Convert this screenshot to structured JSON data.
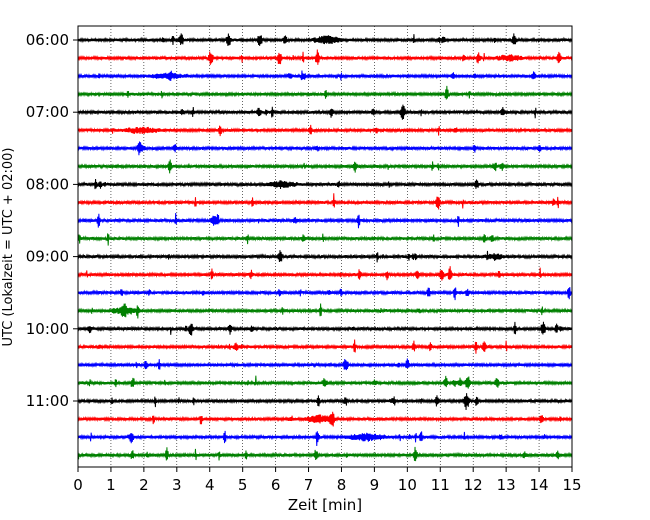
{
  "chart_data": {
    "type": "line",
    "title": "",
    "xlabel": "Zeit  [min]",
    "ylabel": "UTC (Lokalzeit = UTC + 02:00)",
    "xlim": [
      0,
      15
    ],
    "x_ticks": [
      "0",
      "1",
      "2",
      "3",
      "4",
      "5",
      "6",
      "7",
      "8",
      "9",
      "10",
      "11",
      "12",
      "13",
      "14",
      "15"
    ],
    "y_ticks": [
      "06:00",
      "07:00",
      "08:00",
      "09:00",
      "10:00",
      "11:00"
    ],
    "grid": "vertical dotted lines at each minute",
    "trace_colors": [
      "#000000",
      "#ff0000",
      "#0000ff",
      "#008000"
    ],
    "traces": [
      {
        "start": "06:00"
      },
      {
        "start": "06:15"
      },
      {
        "start": "06:30"
      },
      {
        "start": "06:45"
      },
      {
        "start": "07:00"
      },
      {
        "start": "07:15"
      },
      {
        "start": "07:30"
      },
      {
        "start": "07:45"
      },
      {
        "start": "08:00"
      },
      {
        "start": "08:15"
      },
      {
        "start": "08:30"
      },
      {
        "start": "08:45"
      },
      {
        "start": "09:00"
      },
      {
        "start": "09:15"
      },
      {
        "start": "09:30"
      },
      {
        "start": "09:45"
      },
      {
        "start": "10:00"
      },
      {
        "start": "10:15"
      },
      {
        "start": "10:30"
      },
      {
        "start": "10:45"
      },
      {
        "start": "11:00"
      },
      {
        "start": "11:15"
      },
      {
        "start": "11:30"
      },
      {
        "start": "11:45"
      }
    ]
  }
}
